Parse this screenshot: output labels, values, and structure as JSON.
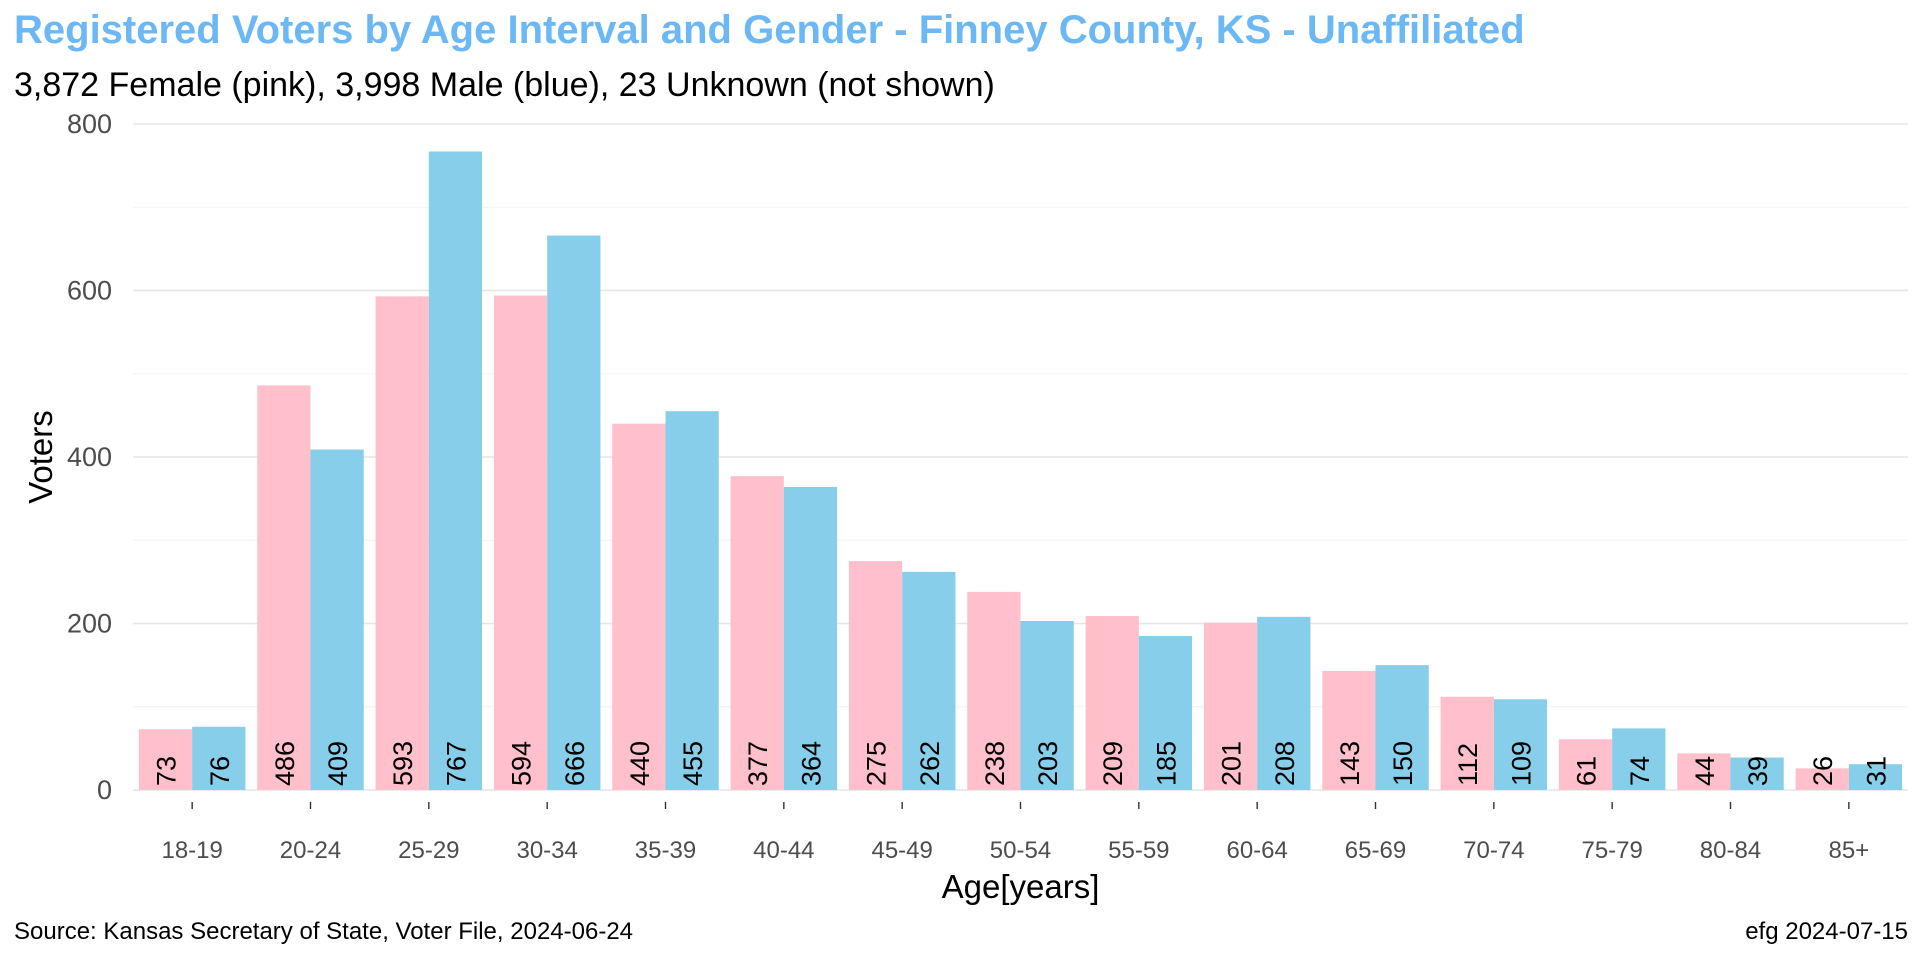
{
  "chart_data": {
    "type": "bar",
    "title": "Registered Voters by Age Interval and Gender - Finney County, KS - Unaffiliated",
    "subtitle": "3,872 Female (pink),  3,998 Male (blue),  23 Unknown (not shown)",
    "xlabel": "Age[years]",
    "ylabel": "Voters",
    "ylim": [
      0,
      800
    ],
    "yticks": [
      0,
      200,
      400,
      600,
      800
    ],
    "grid": true,
    "categories": [
      "18-19",
      "20-24",
      "25-29",
      "30-34",
      "35-39",
      "40-44",
      "45-49",
      "50-54",
      "55-59",
      "60-64",
      "65-69",
      "70-74",
      "75-79",
      "80-84",
      "85+"
    ],
    "series": [
      {
        "name": "Female",
        "color": "#ffc0cb",
        "values": [
          73,
          486,
          593,
          594,
          440,
          377,
          275,
          238,
          209,
          201,
          143,
          112,
          61,
          44,
          26
        ]
      },
      {
        "name": "Male",
        "color": "#87ceeb",
        "values": [
          76,
          409,
          767,
          666,
          455,
          364,
          262,
          203,
          185,
          208,
          150,
          109,
          74,
          39,
          31
        ]
      }
    ]
  },
  "footer": {
    "source": "Source: Kansas Secretary of State, Voter File, 2024-06-24",
    "credit": "efg 2024-07-15"
  }
}
